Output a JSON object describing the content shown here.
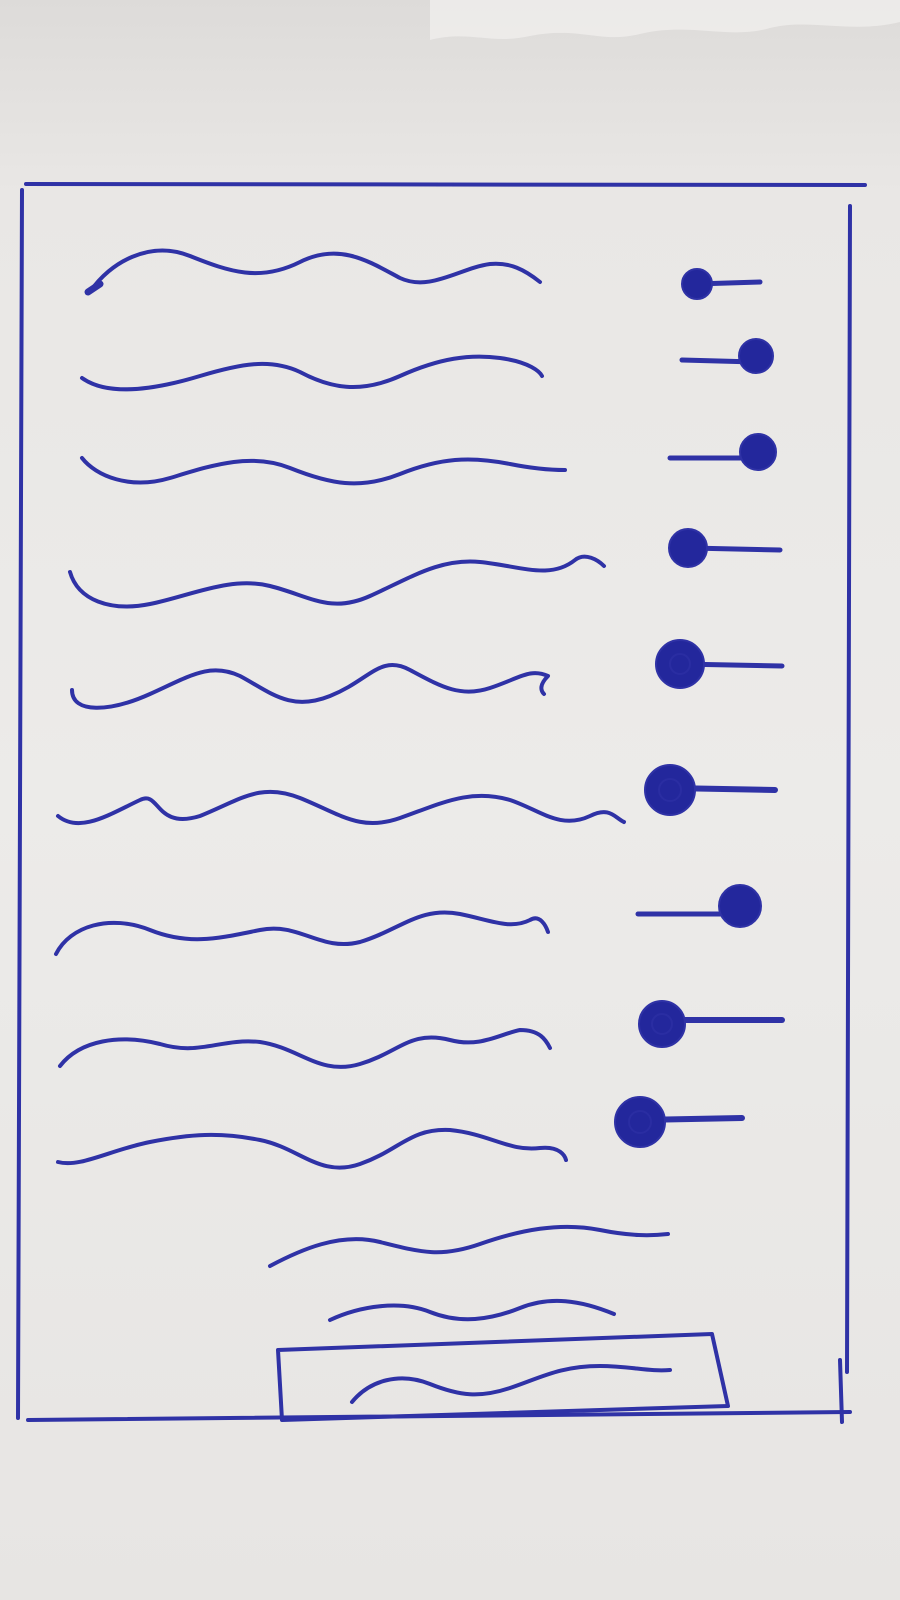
{
  "sketch": {
    "kind": "hand-drawn wireframe",
    "ink_color": "#2f32a6",
    "paper_color": "#ecebe9",
    "text_placeholder": "wavy-line",
    "rows": [
      {
        "label": "",
        "toggle_state": "off"
      },
      {
        "label": "",
        "toggle_state": "on"
      },
      {
        "label": "",
        "toggle_state": "on"
      },
      {
        "label": "",
        "toggle_state": "off"
      },
      {
        "label": "",
        "toggle_state": "off"
      },
      {
        "label": "",
        "toggle_state": "off"
      },
      {
        "label": "",
        "toggle_state": "on"
      },
      {
        "label": "",
        "toggle_state": "off"
      },
      {
        "label": "",
        "toggle_state": "off"
      }
    ],
    "footer_text_lines": 2,
    "submit_button": {
      "label": ""
    }
  }
}
